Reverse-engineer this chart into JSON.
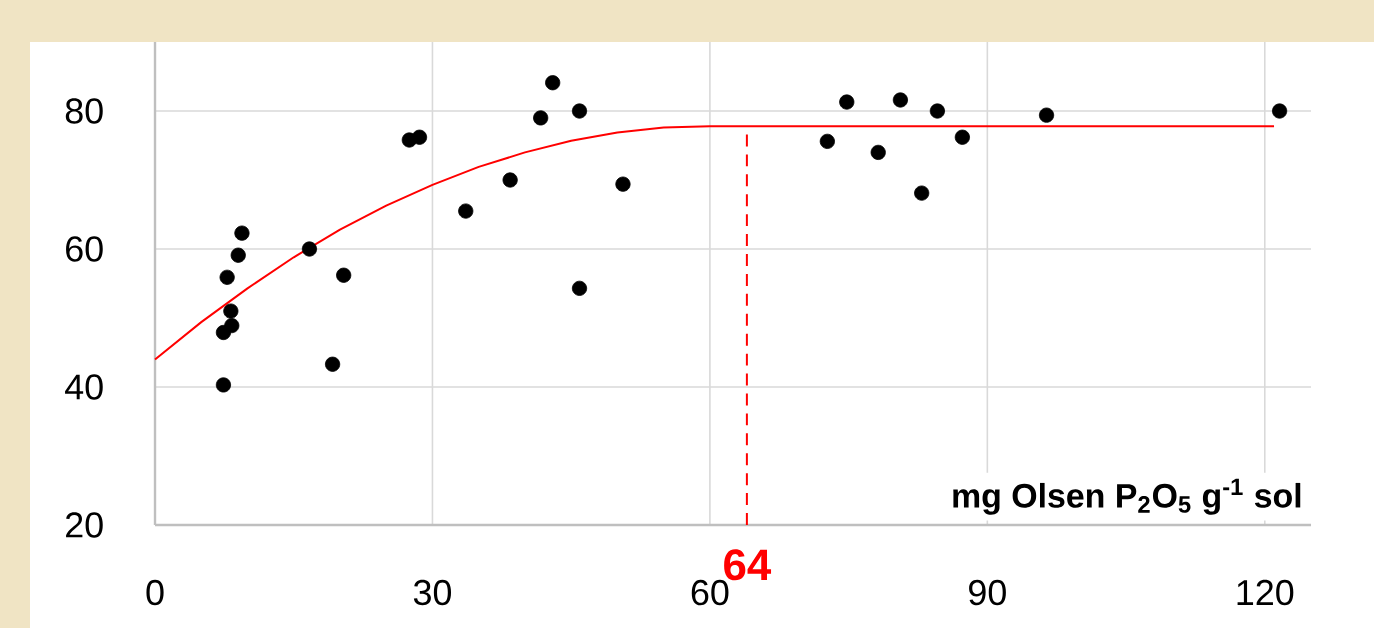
{
  "chart_data": {
    "type": "scatter",
    "xlabel": "mg Olsen P$_{2}$O$_{5}$ g$^{-1}$ sol",
    "xlim": [
      0,
      125
    ],
    "ylim": [
      20,
      90
    ],
    "xticks": [
      0,
      30,
      60,
      90,
      120
    ],
    "yticks": [
      20,
      40,
      60,
      80
    ],
    "grid": true,
    "series": [
      {
        "color": "#000000",
        "marker": "circle",
        "x": [
          7.4,
          7.4,
          7.8,
          8.2,
          8.3,
          9.0,
          9.4,
          16.7,
          19.2,
          20.4,
          27.5,
          28.6,
          33.6,
          38.4,
          41.7,
          43.0,
          45.9,
          45.9,
          50.6,
          72.7,
          74.8,
          78.2,
          80.6,
          82.9,
          84.6,
          87.3,
          96.4,
          121.6
        ],
        "values": [
          40.3,
          47.9,
          55.9,
          51.0,
          48.9,
          59.1,
          62.3,
          60.0,
          43.3,
          56.2,
          75.8,
          76.2,
          65.5,
          70.0,
          79.0,
          84.1,
          80.0,
          54.3,
          69.4,
          75.6,
          81.3,
          74.0,
          81.6,
          68.1,
          80.0,
          76.2,
          79.4,
          80.0
        ]
      },
      {
        "type": "line",
        "color": "#ff0000",
        "line_style": "solid",
        "x": [
          0,
          5,
          10,
          15,
          20,
          25,
          30,
          35,
          40,
          45,
          50,
          55,
          60,
          121
        ],
        "values": [
          44.0,
          49.4,
          54.3,
          58.8,
          62.8,
          66.3,
          69.3,
          71.9,
          74.0,
          75.7,
          76.9,
          77.6,
          77.8,
          77.8
        ]
      }
    ],
    "ref_lines": [
      {
        "axis": "x",
        "value": 64,
        "label": "64",
        "color": "#ff0000",
        "line_style": "dashed"
      }
    ]
  }
}
